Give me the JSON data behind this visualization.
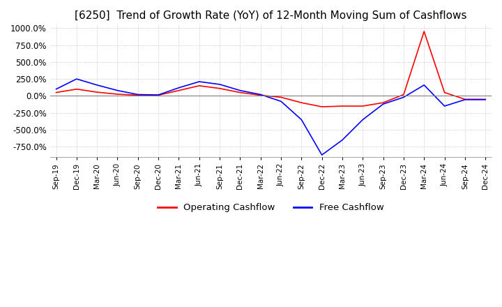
{
  "title": "[6250]  Trend of Growth Rate (YoY) of 12-Month Moving Sum of Cashflows",
  "title_fontsize": 11,
  "ylim": [
    -900,
    1050
  ],
  "yticks": [
    -750,
    -500,
    -250,
    0,
    250,
    500,
    750,
    1000
  ],
  "ytick_labels": [
    "-750.0%",
    "-500.0%",
    "-250.0%",
    "0.0%",
    "250.0%",
    "500.0%",
    "750.0%",
    "1000.0%"
  ],
  "background_color": "#ffffff",
  "grid_color": "#aaaaaa",
  "operating_color": "#ff0000",
  "free_color": "#0000ff",
  "legend_labels": [
    "Operating Cashflow",
    "Free Cashflow"
  ],
  "x_labels": [
    "Sep-19",
    "Dec-19",
    "Mar-20",
    "Jun-20",
    "Sep-20",
    "Dec-20",
    "Mar-21",
    "Jun-21",
    "Sep-21",
    "Dec-21",
    "Mar-22",
    "Jun-22",
    "Sep-22",
    "Dec-22",
    "Mar-23",
    "Jun-23",
    "Sep-23",
    "Dec-23",
    "Mar-24",
    "Jun-24",
    "Sep-24",
    "Dec-24"
  ],
  "operating_cashflow": [
    50,
    100,
    55,
    25,
    10,
    10,
    80,
    150,
    110,
    50,
    10,
    -20,
    -100,
    -160,
    -150,
    -150,
    -100,
    20,
    950,
    50,
    -50,
    -50
  ],
  "free_cashflow": [
    100,
    250,
    160,
    80,
    20,
    15,
    120,
    210,
    170,
    80,
    20,
    -80,
    -350,
    -870,
    -650,
    -350,
    -120,
    -20,
    160,
    -150,
    -55,
    -55
  ]
}
